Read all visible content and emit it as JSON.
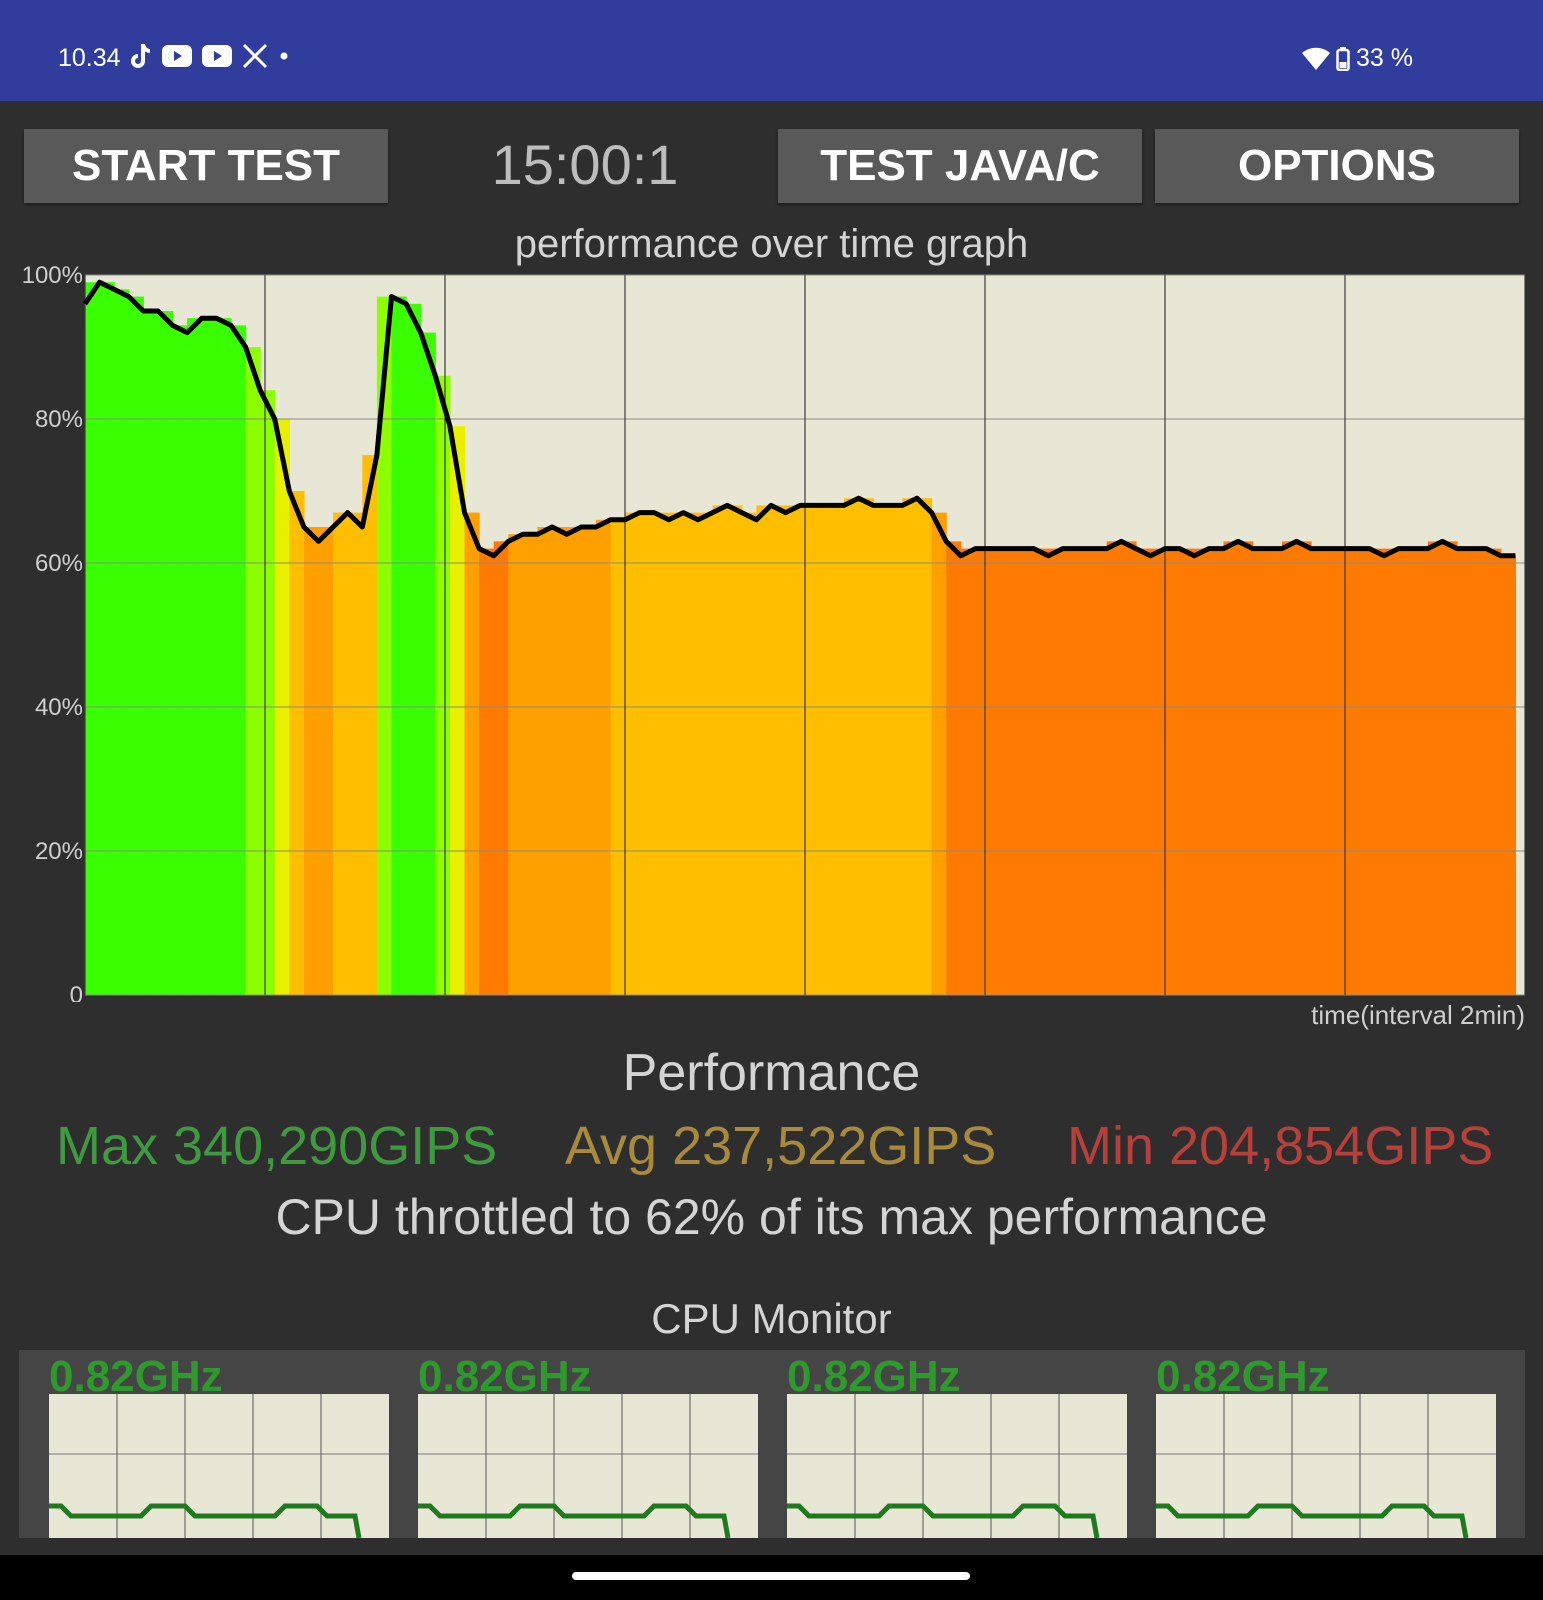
{
  "status_bar": {
    "time": "10.34",
    "notification_icons": [
      "tiktok-icon",
      "youtube-icon",
      "youtube-icon",
      "x-icon",
      "dot-icon"
    ],
    "battery": "33 %"
  },
  "toolbar": {
    "start_label": "START TEST",
    "timer": "15:00:1",
    "java_label": "TEST JAVA/C",
    "options_label": "OPTIONS"
  },
  "graph": {
    "title": "performance over time graph",
    "x_label": "time(interval 2min)",
    "y_ticks": [
      "100%",
      "80%",
      "60%",
      "40%",
      "20%",
      "0"
    ]
  },
  "chart_data": {
    "type": "line",
    "title": "performance over time graph",
    "xlabel": "time(interval 2min)",
    "ylabel": "",
    "ylim": [
      0,
      100
    ],
    "x_interval_min": 2,
    "grid": true,
    "series": [
      {
        "values": [
          96,
          99,
          98,
          97,
          95,
          95,
          93,
          92,
          94,
          94,
          93,
          90,
          84,
          80,
          70,
          65,
          63,
          65,
          67,
          65,
          75,
          97,
          96,
          92,
          86,
          79,
          67,
          62,
          61,
          63,
          64,
          64,
          65,
          64,
          65,
          65,
          66,
          66,
          67,
          67,
          66,
          67,
          66,
          67,
          68,
          67,
          66,
          68,
          67,
          68,
          68,
          68,
          68,
          69,
          68,
          68,
          68,
          69,
          67,
          63,
          61,
          62,
          62,
          62,
          62,
          62,
          61,
          62,
          62,
          62,
          62,
          63,
          62,
          61,
          62,
          62,
          61,
          62,
          62,
          63,
          62,
          62,
          62,
          63,
          62,
          62,
          62,
          62,
          62,
          61,
          62,
          62,
          62,
          63,
          62,
          62,
          62,
          61,
          61
        ],
        "x_range_min": [
          0,
          29.8
        ]
      }
    ],
    "band_colors": [
      "#39ff00",
      "#ffd000",
      "#ff8000",
      "#ff6a00"
    ]
  },
  "performance": {
    "title": "Performance",
    "max": "Max 340,290GIPS",
    "avg": "Avg 237,522GIPS",
    "min": "Min 204,854GIPS",
    "throttle_text": "CPU throttled to 62% of its max performance",
    "colors": {
      "max": "#3f9a3f",
      "avg": "#a88a3c",
      "min": "#b7413a"
    }
  },
  "cpu_monitor": {
    "title": "CPU Monitor",
    "cores": [
      {
        "freq": "0.82GHz"
      },
      {
        "freq": "0.82GHz"
      },
      {
        "freq": "0.82GHz"
      },
      {
        "freq": "0.82GHz"
      }
    ]
  }
}
